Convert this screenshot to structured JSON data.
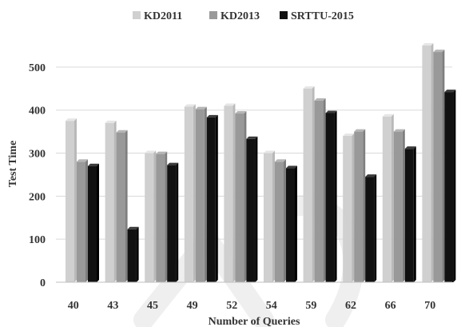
{
  "chart_data": {
    "type": "bar",
    "title": "",
    "xlabel": "Number of Queries",
    "ylabel": "Test Time",
    "categories": [
      "40",
      "43",
      "45",
      "49",
      "52",
      "54",
      "59",
      "62",
      "66",
      "70"
    ],
    "series": [
      {
        "name": "KD2011",
        "color": "#d0d0d0",
        "values": [
          375,
          370,
          300,
          408,
          410,
          300,
          450,
          340,
          385,
          550
        ]
      },
      {
        "name": "KD2013",
        "color": "#999999",
        "values": [
          280,
          348,
          298,
          402,
          392,
          280,
          422,
          350,
          350,
          535
        ]
      },
      {
        "name": "SRTTU-2015",
        "color": "#111111",
        "values": [
          270,
          123,
          272,
          383,
          333,
          265,
          393,
          245,
          310,
          442
        ]
      }
    ],
    "yticks": [
      "0",
      "100",
      "200",
      "300",
      "400",
      "500"
    ],
    "ylim": [
      0,
      550
    ],
    "grid": true,
    "legend_position": "top"
  }
}
